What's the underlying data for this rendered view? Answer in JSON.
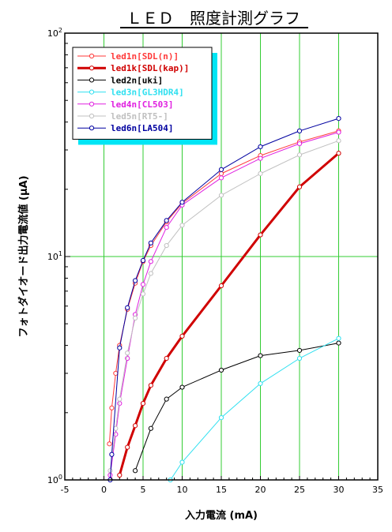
{
  "chart_data": {
    "type": "line",
    "title": "ＬＥＤ　照度計測グラフ",
    "xlabel": "入力電流 (mA)",
    "ylabel": "フォトダイオード出力電流値 (μA)",
    "xlim": [
      -5,
      35
    ],
    "ylim": [
      1,
      100
    ],
    "yscale": "log",
    "x_ticks": [
      "-5",
      "0",
      "5",
      "10",
      "15",
      "20",
      "25",
      "30",
      "35"
    ],
    "y_ticks": [
      {
        "base": "10",
        "exp": "2"
      },
      {
        "base": "10",
        "exp": "1"
      },
      {
        "base": "10",
        "exp": "0"
      }
    ],
    "grid": true,
    "legend_position": "top-left",
    "series": [
      {
        "name": "led1n[SDL(n)]",
        "color": "#ff3a3a",
        "width": 1,
        "marker": true,
        "points": [
          [
            0.7,
            1.45
          ],
          [
            1,
            2.1
          ],
          [
            1.5,
            3.0
          ],
          [
            2,
            4.0
          ],
          [
            3,
            5.8
          ],
          [
            4,
            7.6
          ],
          [
            5,
            9.5
          ],
          [
            6,
            11.2
          ],
          [
            8,
            14.3
          ],
          [
            10,
            17.3
          ],
          [
            15,
            23.5
          ],
          [
            20,
            28.3
          ],
          [
            25,
            32.6
          ],
          [
            30,
            36.5
          ]
        ]
      },
      {
        "name": "led1k[SDL(kap)]",
        "color": "#d00000",
        "width": 3,
        "marker": true,
        "points": [
          [
            2,
            1.05
          ],
          [
            3,
            1.4
          ],
          [
            4,
            1.75
          ],
          [
            5,
            2.2
          ],
          [
            6,
            2.65
          ],
          [
            8,
            3.5
          ],
          [
            10,
            4.4
          ],
          [
            15,
            7.4
          ],
          [
            20,
            12.5
          ],
          [
            25,
            20.5
          ],
          [
            30,
            29.0
          ]
        ]
      },
      {
        "name": "led2n[uki]",
        "color": "#000000",
        "width": 1,
        "marker": true,
        "points": [
          [
            4,
            1.1
          ],
          [
            6,
            1.7
          ],
          [
            8,
            2.3
          ],
          [
            10,
            2.6
          ],
          [
            15,
            3.1
          ],
          [
            20,
            3.6
          ],
          [
            25,
            3.8
          ],
          [
            30,
            4.1
          ]
        ]
      },
      {
        "name": "led3n[GL3HDR4]",
        "color": "#30e0f0",
        "width": 1,
        "marker": true,
        "points": [
          [
            8.5,
            1.0
          ],
          [
            10,
            1.2
          ],
          [
            15,
            1.9
          ],
          [
            20,
            2.7
          ],
          [
            25,
            3.5
          ],
          [
            30,
            4.3
          ]
        ]
      },
      {
        "name": "led4n[CL503]",
        "color": "#e020e0",
        "width": 1,
        "marker": true,
        "points": [
          [
            0.8,
            1.05
          ],
          [
            1.5,
            1.6
          ],
          [
            2,
            2.2
          ],
          [
            3,
            3.5
          ],
          [
            4,
            5.5
          ],
          [
            5,
            7.5
          ],
          [
            6,
            9.5
          ],
          [
            8,
            13.5
          ],
          [
            10,
            17
          ],
          [
            15,
            22.5
          ],
          [
            20,
            27.5
          ],
          [
            25,
            32
          ],
          [
            30,
            36
          ]
        ]
      },
      {
        "name": "led5n[RT5-]",
        "color": "#c0c0c0",
        "width": 1,
        "marker": true,
        "points": [
          [
            0.8,
            1.1
          ],
          [
            1.5,
            1.7
          ],
          [
            2,
            2.3
          ],
          [
            3,
            3.7
          ],
          [
            4,
            5.3
          ],
          [
            5,
            6.8
          ],
          [
            6,
            8.4
          ],
          [
            8,
            11.2
          ],
          [
            10,
            13.8
          ],
          [
            15,
            18.8
          ],
          [
            20,
            23.5
          ],
          [
            25,
            28.5
          ],
          [
            30,
            33
          ]
        ]
      },
      {
        "name": "led6n[LA504]",
        "color": "#0000a0",
        "width": 1,
        "marker": true,
        "points": [
          [
            0.8,
            1.0
          ],
          [
            1,
            1.3
          ],
          [
            2,
            3.9
          ],
          [
            3,
            5.9
          ],
          [
            4,
            7.8
          ],
          [
            5,
            9.6
          ],
          [
            6,
            11.5
          ],
          [
            8,
            14.5
          ],
          [
            10,
            17.5
          ],
          [
            15,
            24.5
          ],
          [
            20,
            31
          ],
          [
            25,
            36.5
          ],
          [
            30,
            41.5
          ]
        ]
      }
    ]
  }
}
